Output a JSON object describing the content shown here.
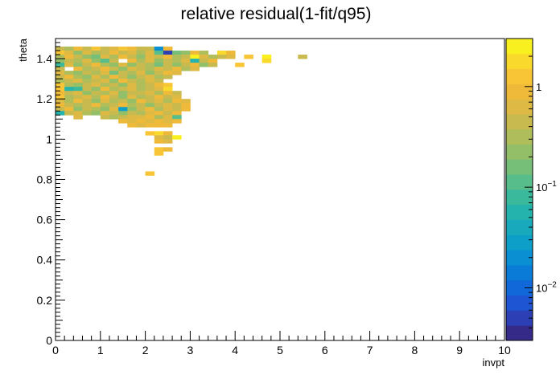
{
  "chart_data": {
    "type": "heatmap",
    "title": "relative residual(1-fit/q95)",
    "xlabel": "invpt",
    "ylabel": "theta",
    "xlim": [
      0,
      10
    ],
    "ylim": [
      0,
      1.5
    ],
    "x_ticks": [
      "0",
      "1",
      "2",
      "3",
      "4",
      "5",
      "6",
      "7",
      "8",
      "9",
      "10"
    ],
    "y_ticks": [
      "0",
      "0.2",
      "0.4",
      "0.6",
      "0.8",
      "1",
      "1.2",
      "1.4"
    ],
    "colorbar": {
      "scale": "log",
      "range": [
        0.003,
        3.0
      ],
      "ticks": [
        {
          "value": 1,
          "label": "1"
        },
        {
          "value": 0.1,
          "label": "10^-1"
        },
        {
          "value": 0.01,
          "label": "10^-2"
        }
      ],
      "palette": [
        "#352a87",
        "#2c3fb5",
        "#1e55d2",
        "#1068d9",
        "#0a7cd8",
        "#0a8fd2",
        "#0e9fc8",
        "#18aabc",
        "#25b3ad",
        "#3ab99c",
        "#57bd8a",
        "#75bf78",
        "#93bf68",
        "#b0bd5b",
        "#c9ba4f",
        "#deb944",
        "#efba3a",
        "#f8c536",
        "#f9d92c",
        "#f9f01f"
      ]
    },
    "bin_width_x": 0.2,
    "bin_height_y": 0.02,
    "cells": [
      [
        0.0,
        1.44,
        0.5
      ],
      [
        0.2,
        1.44,
        0.3
      ],
      [
        0.4,
        1.44,
        0.8
      ],
      [
        0.6,
        1.44,
        0.5
      ],
      [
        0.8,
        1.44,
        1.2
      ],
      [
        1.0,
        1.44,
        0.4
      ],
      [
        1.2,
        1.44,
        0.6
      ],
      [
        1.4,
        1.44,
        1.5
      ],
      [
        1.6,
        1.44,
        0.8
      ],
      [
        1.8,
        1.44,
        0.4
      ],
      [
        2.0,
        1.44,
        0.5
      ],
      [
        2.2,
        1.44,
        0.02
      ],
      [
        2.4,
        1.44,
        0.9
      ],
      [
        0.0,
        1.42,
        1.3
      ],
      [
        0.2,
        1.42,
        0.6
      ],
      [
        0.4,
        1.42,
        0.2
      ],
      [
        0.6,
        1.42,
        0.7
      ],
      [
        0.8,
        1.42,
        0.3
      ],
      [
        1.0,
        1.42,
        0.5
      ],
      [
        1.2,
        1.42,
        0.9
      ],
      [
        1.4,
        1.42,
        0.4
      ],
      [
        1.6,
        1.42,
        0.7
      ],
      [
        1.8,
        1.42,
        0.3
      ],
      [
        2.0,
        1.42,
        0.6
      ],
      [
        2.2,
        1.42,
        0.1
      ],
      [
        2.4,
        1.42,
        0.005
      ],
      [
        2.6,
        1.42,
        0.15
      ],
      [
        2.8,
        1.42,
        0.2
      ],
      [
        3.0,
        1.42,
        0.8
      ],
      [
        3.2,
        1.42,
        0.3
      ],
      [
        3.6,
        1.42,
        1.8
      ],
      [
        3.8,
        1.42,
        0.9
      ],
      [
        0.0,
        1.4,
        0.3
      ],
      [
        0.2,
        1.4,
        0.8
      ],
      [
        0.4,
        1.4,
        0.5
      ],
      [
        0.6,
        1.4,
        0.2
      ],
      [
        0.8,
        1.4,
        0.15
      ],
      [
        1.0,
        1.4,
        0.6
      ],
      [
        1.2,
        1.4,
        0.3
      ],
      [
        1.4,
        1.4,
        0.9
      ],
      [
        1.6,
        1.4,
        0.5
      ],
      [
        1.8,
        1.4,
        0.2
      ],
      [
        2.0,
        1.4,
        0.7
      ],
      [
        2.2,
        1.4,
        0.4
      ],
      [
        2.4,
        1.4,
        0.8
      ],
      [
        2.6,
        1.4,
        0.3
      ],
      [
        2.8,
        1.4,
        0.5
      ],
      [
        3.0,
        1.4,
        2.5
      ],
      [
        3.2,
        1.4,
        0.6
      ],
      [
        3.4,
        1.4,
        0.3
      ],
      [
        3.6,
        1.4,
        0.5
      ],
      [
        3.8,
        1.4,
        0.7
      ],
      [
        4.2,
        1.4,
        1.5
      ],
      [
        4.6,
        1.4,
        2.5
      ],
      [
        5.4,
        1.4,
        0.4
      ],
      [
        0.0,
        1.38,
        0.2
      ],
      [
        0.2,
        1.38,
        0.5
      ],
      [
        0.4,
        1.38,
        0.3
      ],
      [
        0.6,
        1.38,
        0.7
      ],
      [
        0.8,
        1.38,
        0.2
      ],
      [
        1.0,
        1.38,
        0.1
      ],
      [
        1.2,
        1.38,
        0.4
      ],
      [
        1.6,
        1.38,
        0.8
      ],
      [
        1.8,
        1.38,
        0.3
      ],
      [
        2.0,
        1.38,
        0.6
      ],
      [
        2.2,
        1.38,
        0.2
      ],
      [
        2.4,
        1.38,
        0.5
      ],
      [
        2.6,
        1.38,
        0.3
      ],
      [
        2.8,
        1.38,
        0.7
      ],
      [
        3.0,
        1.38,
        0.05
      ],
      [
        3.2,
        1.38,
        0.4
      ],
      [
        3.4,
        1.38,
        0.9
      ],
      [
        4.6,
        1.38,
        2.0
      ],
      [
        0.0,
        1.36,
        0.08
      ],
      [
        0.2,
        1.36,
        0.6
      ],
      [
        0.4,
        1.36,
        0.2
      ],
      [
        0.6,
        1.36,
        0.4
      ],
      [
        0.8,
        1.36,
        0.9
      ],
      [
        1.0,
        1.36,
        0.3
      ],
      [
        1.2,
        1.36,
        0.2
      ],
      [
        1.4,
        1.36,
        0.6
      ],
      [
        1.6,
        1.36,
        0.2
      ],
      [
        1.8,
        1.36,
        0.4
      ],
      [
        2.0,
        1.36,
        0.3
      ],
      [
        2.2,
        1.36,
        0.15
      ],
      [
        2.4,
        1.36,
        0.5
      ],
      [
        2.6,
        1.36,
        0.2
      ],
      [
        2.8,
        1.36,
        0.4
      ],
      [
        3.0,
        1.36,
        0.8
      ],
      [
        3.2,
        1.36,
        0.2
      ],
      [
        3.4,
        1.36,
        0.5
      ],
      [
        4.0,
        1.36,
        1.3
      ],
      [
        0.0,
        1.34,
        0.5
      ],
      [
        0.4,
        1.34,
        0.8
      ],
      [
        0.6,
        1.34,
        0.3
      ],
      [
        0.8,
        1.34,
        0.5
      ],
      [
        1.0,
        1.34,
        1.0
      ],
      [
        1.2,
        1.34,
        0.4
      ],
      [
        1.4,
        1.34,
        0.2
      ],
      [
        1.6,
        1.34,
        0.7
      ],
      [
        1.8,
        1.34,
        0.5
      ],
      [
        2.0,
        1.34,
        0.3
      ],
      [
        2.2,
        1.34,
        0.6
      ],
      [
        2.4,
        1.34,
        0.4
      ],
      [
        2.6,
        1.34,
        0.9
      ],
      [
        2.8,
        1.34,
        0.3
      ],
      [
        3.0,
        1.34,
        0.6
      ],
      [
        0.0,
        1.32,
        0.6
      ],
      [
        0.2,
        1.32,
        0.3
      ],
      [
        0.4,
        1.32,
        0.2
      ],
      [
        0.6,
        1.32,
        0.5
      ],
      [
        0.8,
        1.32,
        0.3
      ],
      [
        1.0,
        1.32,
        0.7
      ],
      [
        1.2,
        1.32,
        0.15
      ],
      [
        1.4,
        1.32,
        0.4
      ],
      [
        1.6,
        1.32,
        0.3
      ],
      [
        1.8,
        1.32,
        0.6
      ],
      [
        2.0,
        1.32,
        0.2
      ],
      [
        2.2,
        1.32,
        0.5
      ],
      [
        2.4,
        1.32,
        0.8
      ],
      [
        2.6,
        1.32,
        0.6
      ],
      [
        0.0,
        1.3,
        0.4
      ],
      [
        0.2,
        1.3,
        0.8
      ],
      [
        0.4,
        1.3,
        0.3
      ],
      [
        0.6,
        1.3,
        0.2
      ],
      [
        0.8,
        1.3,
        0.6
      ],
      [
        1.0,
        1.3,
        0.3
      ],
      [
        1.2,
        1.3,
        0.9
      ],
      [
        1.4,
        1.3,
        0.5
      ],
      [
        1.6,
        1.3,
        0.2
      ],
      [
        1.8,
        1.3,
        0.4
      ],
      [
        2.0,
        1.3,
        0.6
      ],
      [
        2.2,
        1.3,
        0.3
      ],
      [
        2.4,
        1.3,
        0.5
      ],
      [
        0.0,
        1.28,
        0.3
      ],
      [
        0.2,
        1.28,
        0.5
      ],
      [
        0.4,
        1.28,
        0.7
      ],
      [
        0.6,
        1.28,
        0.3
      ],
      [
        0.8,
        1.28,
        0.4
      ],
      [
        1.0,
        1.28,
        0.6
      ],
      [
        1.2,
        1.28,
        0.2
      ],
      [
        1.4,
        1.28,
        0.8
      ],
      [
        1.6,
        1.28,
        0.4
      ],
      [
        1.8,
        1.28,
        0.3
      ],
      [
        2.0,
        1.28,
        0.7
      ],
      [
        2.2,
        1.28,
        0.4
      ],
      [
        0.0,
        1.26,
        1.5
      ],
      [
        0.2,
        1.26,
        0.3
      ],
      [
        0.4,
        1.26,
        0.2
      ],
      [
        0.6,
        1.26,
        0.4
      ],
      [
        0.8,
        1.26,
        0.7
      ],
      [
        1.0,
        1.26,
        0.3
      ],
      [
        1.2,
        1.26,
        0.5
      ],
      [
        1.4,
        1.26,
        0.2
      ],
      [
        1.6,
        1.26,
        0.6
      ],
      [
        1.8,
        1.26,
        0.3
      ],
      [
        2.0,
        1.26,
        0.5
      ],
      [
        2.2,
        1.26,
        0.8
      ],
      [
        2.4,
        1.26,
        1.2
      ],
      [
        0.0,
        1.24,
        1.3
      ],
      [
        0.2,
        1.24,
        0.05
      ],
      [
        0.4,
        1.24,
        0.08
      ],
      [
        0.6,
        1.24,
        0.4
      ],
      [
        0.8,
        1.24,
        0.2
      ],
      [
        1.0,
        1.24,
        0.8
      ],
      [
        1.2,
        1.24,
        0.3
      ],
      [
        1.4,
        1.24,
        0.5
      ],
      [
        1.6,
        1.24,
        0.7
      ],
      [
        1.8,
        1.24,
        0.3
      ],
      [
        2.0,
        1.24,
        0.5
      ],
      [
        2.2,
        1.24,
        0.6
      ],
      [
        2.4,
        1.24,
        2.0
      ],
      [
        0.0,
        1.22,
        0.8
      ],
      [
        0.2,
        1.22,
        0.4
      ],
      [
        0.4,
        1.22,
        0.6
      ],
      [
        0.6,
        1.22,
        0.2
      ],
      [
        0.8,
        1.22,
        0.5
      ],
      [
        1.0,
        1.22,
        0.3
      ],
      [
        1.2,
        1.22,
        0.7
      ],
      [
        1.4,
        1.22,
        0.2
      ],
      [
        1.6,
        1.22,
        0.5
      ],
      [
        1.8,
        1.22,
        0.4
      ],
      [
        2.0,
        1.22,
        0.6
      ],
      [
        2.2,
        1.22,
        0.3
      ],
      [
        2.4,
        1.22,
        0.8
      ],
      [
        2.6,
        1.22,
        0.5
      ],
      [
        0.0,
        1.2,
        1.3
      ],
      [
        0.2,
        1.2,
        0.3
      ],
      [
        0.4,
        1.2,
        0.5
      ],
      [
        0.6,
        1.2,
        0.7
      ],
      [
        0.8,
        1.2,
        0.3
      ],
      [
        1.0,
        1.2,
        0.9
      ],
      [
        1.2,
        1.2,
        0.4
      ],
      [
        1.4,
        1.2,
        0.2
      ],
      [
        1.6,
        1.2,
        0.6
      ],
      [
        1.8,
        1.2,
        0.3
      ],
      [
        2.0,
        1.2,
        0.5
      ],
      [
        2.2,
        1.2,
        0.8
      ],
      [
        2.4,
        1.2,
        0.4
      ],
      [
        2.6,
        1.2,
        0.7
      ],
      [
        0.0,
        1.18,
        0.6
      ],
      [
        0.2,
        1.18,
        0.3
      ],
      [
        0.4,
        1.18,
        0.8
      ],
      [
        0.6,
        1.18,
        0.4
      ],
      [
        0.8,
        1.18,
        0.2
      ],
      [
        1.0,
        1.18,
        0.6
      ],
      [
        1.2,
        1.18,
        0.3
      ],
      [
        1.4,
        1.18,
        0.5
      ],
      [
        1.6,
        1.18,
        0.2
      ],
      [
        1.8,
        1.18,
        0.8
      ],
      [
        2.0,
        1.18,
        0.4
      ],
      [
        2.2,
        1.18,
        0.6
      ],
      [
        2.4,
        1.18,
        0.3
      ],
      [
        2.6,
        1.18,
        0.9
      ],
      [
        2.8,
        1.18,
        0.7
      ],
      [
        0.0,
        1.16,
        0.9
      ],
      [
        0.2,
        1.16,
        0.5
      ],
      [
        0.4,
        1.16,
        0.3
      ],
      [
        0.6,
        1.16,
        0.5
      ],
      [
        0.8,
        1.16,
        0.9
      ],
      [
        1.0,
        1.16,
        0.3
      ],
      [
        1.2,
        1.16,
        0.5
      ],
      [
        1.4,
        1.16,
        0.8
      ],
      [
        1.6,
        1.16,
        0.3
      ],
      [
        1.8,
        1.16,
        0.5
      ],
      [
        2.0,
        1.16,
        0.2
      ],
      [
        2.2,
        1.16,
        0.4
      ],
      [
        2.4,
        1.16,
        0.7
      ],
      [
        2.6,
        1.16,
        0.5
      ],
      [
        2.8,
        1.16,
        0.9
      ],
      [
        0.0,
        1.14,
        0.4
      ],
      [
        0.2,
        1.14,
        0.8
      ],
      [
        0.4,
        1.14,
        0.2
      ],
      [
        0.6,
        1.14,
        0.5
      ],
      [
        0.8,
        1.14,
        0.3
      ],
      [
        1.0,
        1.14,
        0.2
      ],
      [
        1.2,
        1.14,
        0.6
      ],
      [
        1.4,
        1.14,
        0.03
      ],
      [
        1.6,
        1.14,
        0.2
      ],
      [
        1.8,
        1.14,
        0.5
      ],
      [
        2.0,
        1.14,
        0.8
      ],
      [
        2.2,
        1.14,
        0.3
      ],
      [
        2.4,
        1.14,
        0.6
      ],
      [
        2.6,
        1.14,
        0.4
      ],
      [
        2.8,
        1.14,
        0.8
      ],
      [
        0.0,
        1.12,
        0.05
      ],
      [
        0.2,
        1.12,
        0.5
      ],
      [
        0.4,
        1.12,
        0.7
      ],
      [
        0.6,
        1.12,
        0.3
      ],
      [
        0.8,
        1.12,
        0.2
      ],
      [
        1.0,
        1.12,
        0.6
      ],
      [
        1.2,
        1.12,
        0.4
      ],
      [
        1.4,
        1.12,
        0.2
      ],
      [
        1.6,
        1.12,
        0.5
      ],
      [
        1.8,
        1.12,
        0.3
      ],
      [
        2.0,
        1.12,
        0.6
      ],
      [
        2.2,
        1.12,
        0.8
      ],
      [
        2.4,
        1.12,
        0.4
      ],
      [
        2.6,
        1.12,
        0.9
      ],
      [
        0.4,
        1.1,
        0.6
      ],
      [
        1.0,
        1.1,
        0.4
      ],
      [
        1.2,
        1.1,
        0.3
      ],
      [
        1.4,
        1.1,
        0.5
      ],
      [
        1.6,
        1.1,
        0.7
      ],
      [
        1.8,
        1.1,
        0.6
      ],
      [
        2.0,
        1.1,
        0.8
      ],
      [
        2.2,
        1.1,
        0.3
      ],
      [
        2.4,
        1.1,
        0.6
      ],
      [
        2.6,
        1.1,
        0.1
      ],
      [
        1.4,
        1.08,
        0.8
      ],
      [
        1.6,
        1.08,
        0.6
      ],
      [
        1.8,
        1.08,
        0.9
      ],
      [
        2.0,
        1.08,
        0.6
      ],
      [
        2.2,
        1.08,
        0.8
      ],
      [
        2.4,
        1.08,
        0.7
      ],
      [
        2.6,
        1.08,
        0.8
      ],
      [
        1.6,
        1.06,
        0.8
      ],
      [
        1.8,
        1.06,
        0.7
      ],
      [
        2.0,
        1.06,
        0.8
      ],
      [
        2.2,
        1.06,
        0.9
      ],
      [
        2.4,
        1.06,
        1.0
      ],
      [
        2.0,
        1.02,
        1.5
      ],
      [
        2.2,
        1.02,
        2.0
      ],
      [
        2.4,
        1.02,
        1.0
      ],
      [
        2.2,
        1.0,
        0.6
      ],
      [
        2.4,
        1.0,
        0.4
      ],
      [
        2.6,
        1.0,
        2.5
      ],
      [
        2.2,
        0.98,
        0.8
      ],
      [
        2.4,
        0.98,
        0.7
      ],
      [
        2.2,
        0.94,
        1.5
      ],
      [
        2.4,
        0.94,
        0.8
      ],
      [
        2.2,
        0.92,
        1.2
      ],
      [
        2.0,
        0.82,
        1.2
      ]
    ]
  }
}
